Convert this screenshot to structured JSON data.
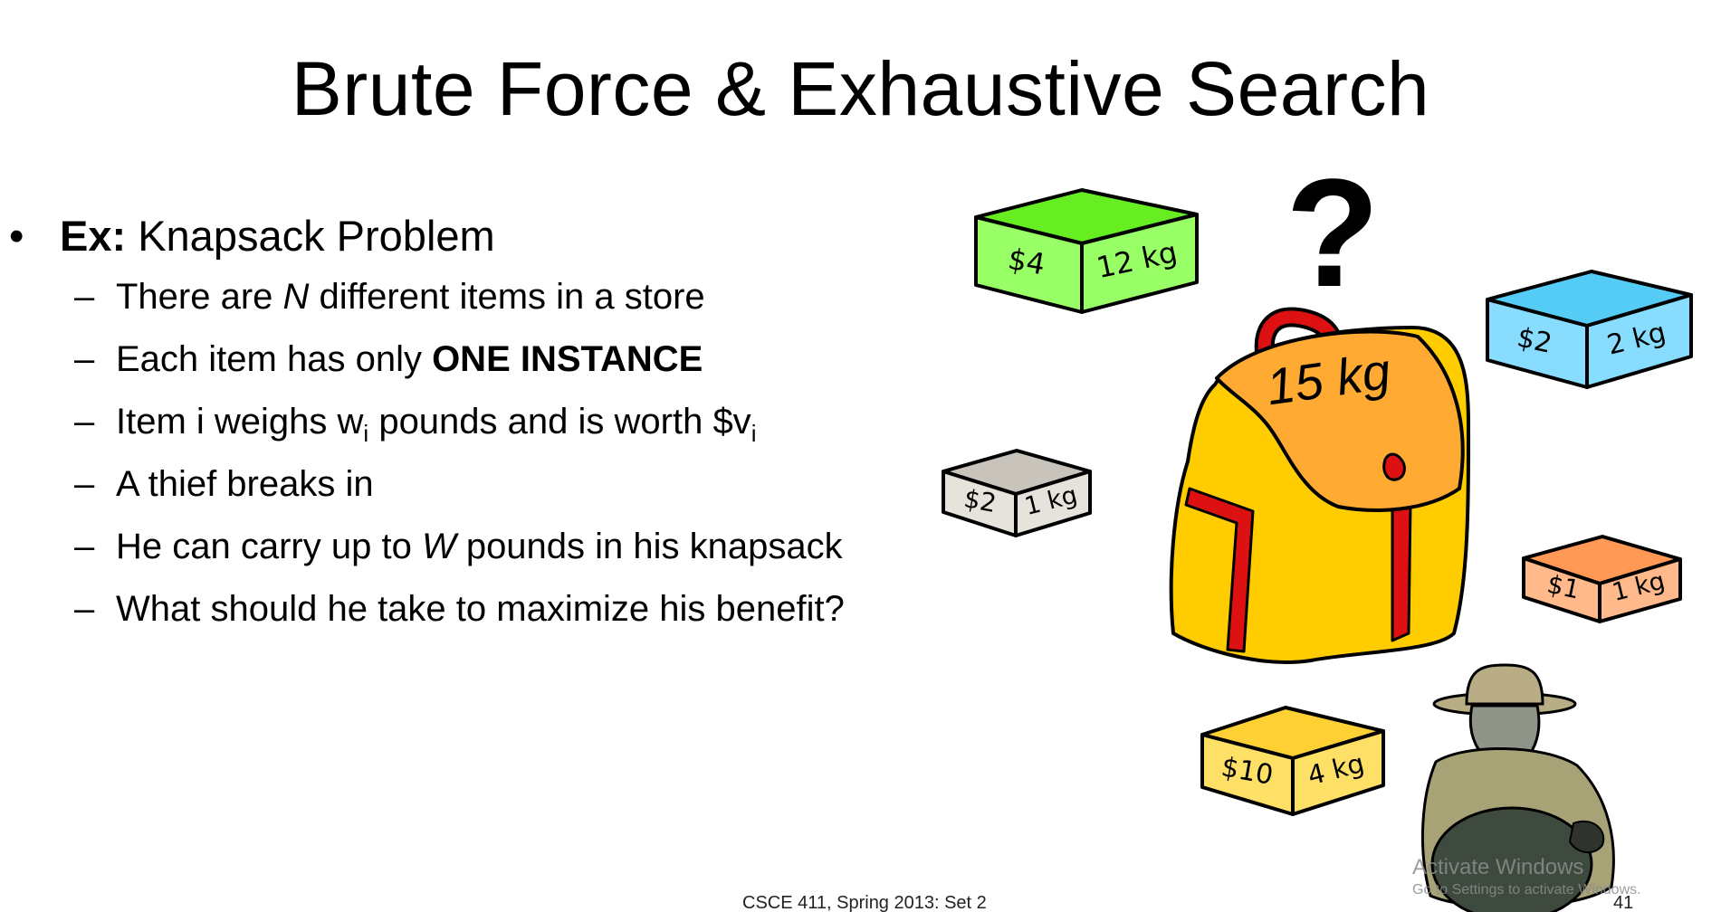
{
  "slide": {
    "title": "Brute Force & Exhaustive Search",
    "bullet": {
      "marker": "•",
      "label": "Ex:",
      "text": " Knapsack Problem"
    },
    "dash": "–",
    "sub_items": [
      {
        "a": "There are ",
        "b": "N",
        "c": " different items in a store"
      },
      {
        "a": "Each item has only ",
        "b": "ONE INSTANCE"
      },
      {
        "a": "Item i weighs w",
        "b": "i",
        "c": " pounds and is worth $v",
        "d": "i"
      },
      {
        "a": "A thief breaks in"
      },
      {
        "a": "He can carry up to ",
        "b": "W",
        "c": " pounds in his knapsack"
      },
      {
        "a": "What should he take to maximize his benefit?"
      }
    ],
    "footer": "CSCE 411, Spring 2013:  Set 2",
    "page_number": "41"
  },
  "illustration": {
    "question_mark": "?",
    "knapsack_label": "15 kg",
    "items": [
      {
        "price": "$4",
        "weight": "12 kg",
        "color": "#99ff66",
        "top_color": "#66ee22"
      },
      {
        "price": "$2",
        "weight": "2 kg",
        "color": "#88ddff",
        "top_color": "#55ccf5"
      },
      {
        "price": "$2",
        "weight": "1 kg",
        "color": "#e6e3dc",
        "top_color": "#c8c4bb"
      },
      {
        "price": "$1",
        "weight": "1 kg",
        "color": "#ffb98a",
        "top_color": "#ff9955"
      },
      {
        "price": "$10",
        "weight": "4 kg",
        "color": "#ffe066",
        "top_color": "#ffd033"
      }
    ],
    "colors": {
      "knapsack_body": "#ffcc00",
      "knapsack_flap": "#ffaa33",
      "knapsack_straps": "#dd1111",
      "thief_coat": "#a8a277",
      "sack": "#3f4a3f"
    }
  },
  "watermark": {
    "line1": "Activate Windows",
    "line2": "Go to Settings to activate Windows."
  }
}
